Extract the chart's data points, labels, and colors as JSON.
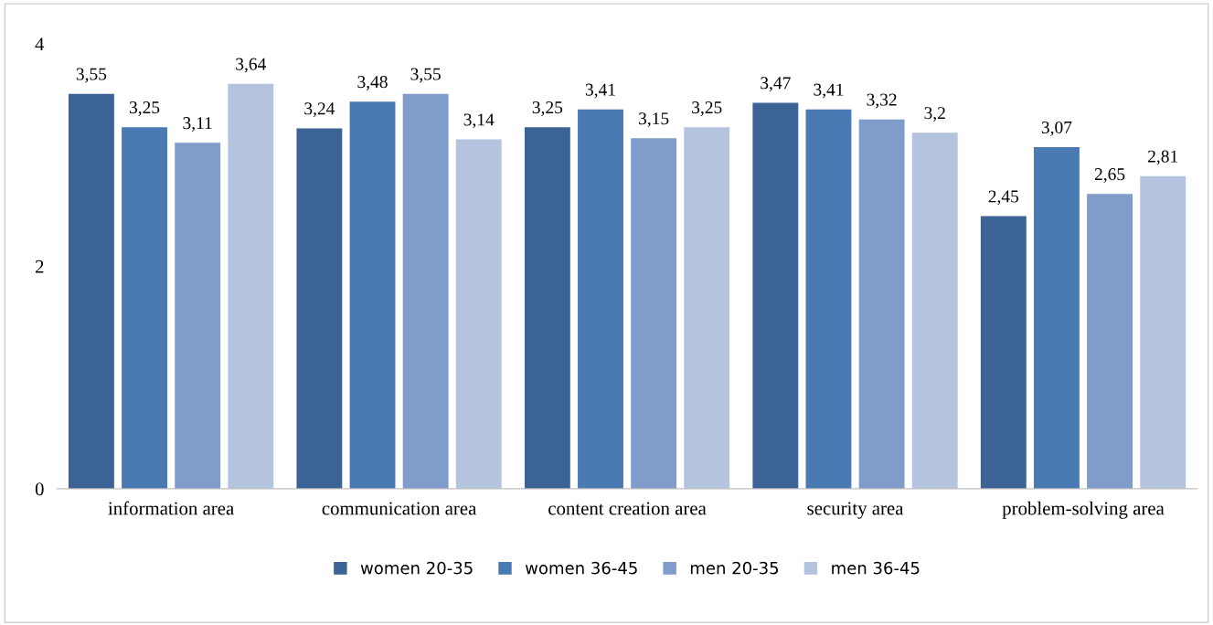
{
  "chart_data": {
    "type": "bar",
    "categories": [
      "information area",
      "communication area",
      "content creation area",
      "security area",
      "problem-solving area"
    ],
    "series": [
      {
        "name": "women 20-35",
        "color": "#3b6395",
        "values": [
          3.55,
          3.24,
          3.25,
          3.47,
          2.45
        ],
        "value_labels": [
          "3,55",
          "3,24",
          "3,25",
          "3,47",
          "2,45"
        ]
      },
      {
        "name": "women 36-45",
        "color": "#4a7ab3",
        "values": [
          3.25,
          3.48,
          3.41,
          3.41,
          3.07
        ],
        "value_labels": [
          "3,25",
          "3,48",
          "3,41",
          "3,41",
          "3,07"
        ]
      },
      {
        "name": "men 20-35",
        "color": "#7f9ccb",
        "values": [
          3.11,
          3.55,
          3.15,
          3.32,
          2.65
        ],
        "value_labels": [
          "3,11",
          "3,55",
          "3,15",
          "3,32",
          "2,65"
        ]
      },
      {
        "name": "men 36-45",
        "color": "#b4c3de",
        "values": [
          3.64,
          3.14,
          3.25,
          3.2,
          2.81
        ],
        "value_labels": [
          "3,64",
          "3,14",
          "3,25",
          "3,2",
          "2,81"
        ]
      }
    ],
    "ylim": [
      0,
      4
    ],
    "yticks": [
      0,
      2,
      4
    ],
    "grid": false,
    "legend": "bottom"
  }
}
